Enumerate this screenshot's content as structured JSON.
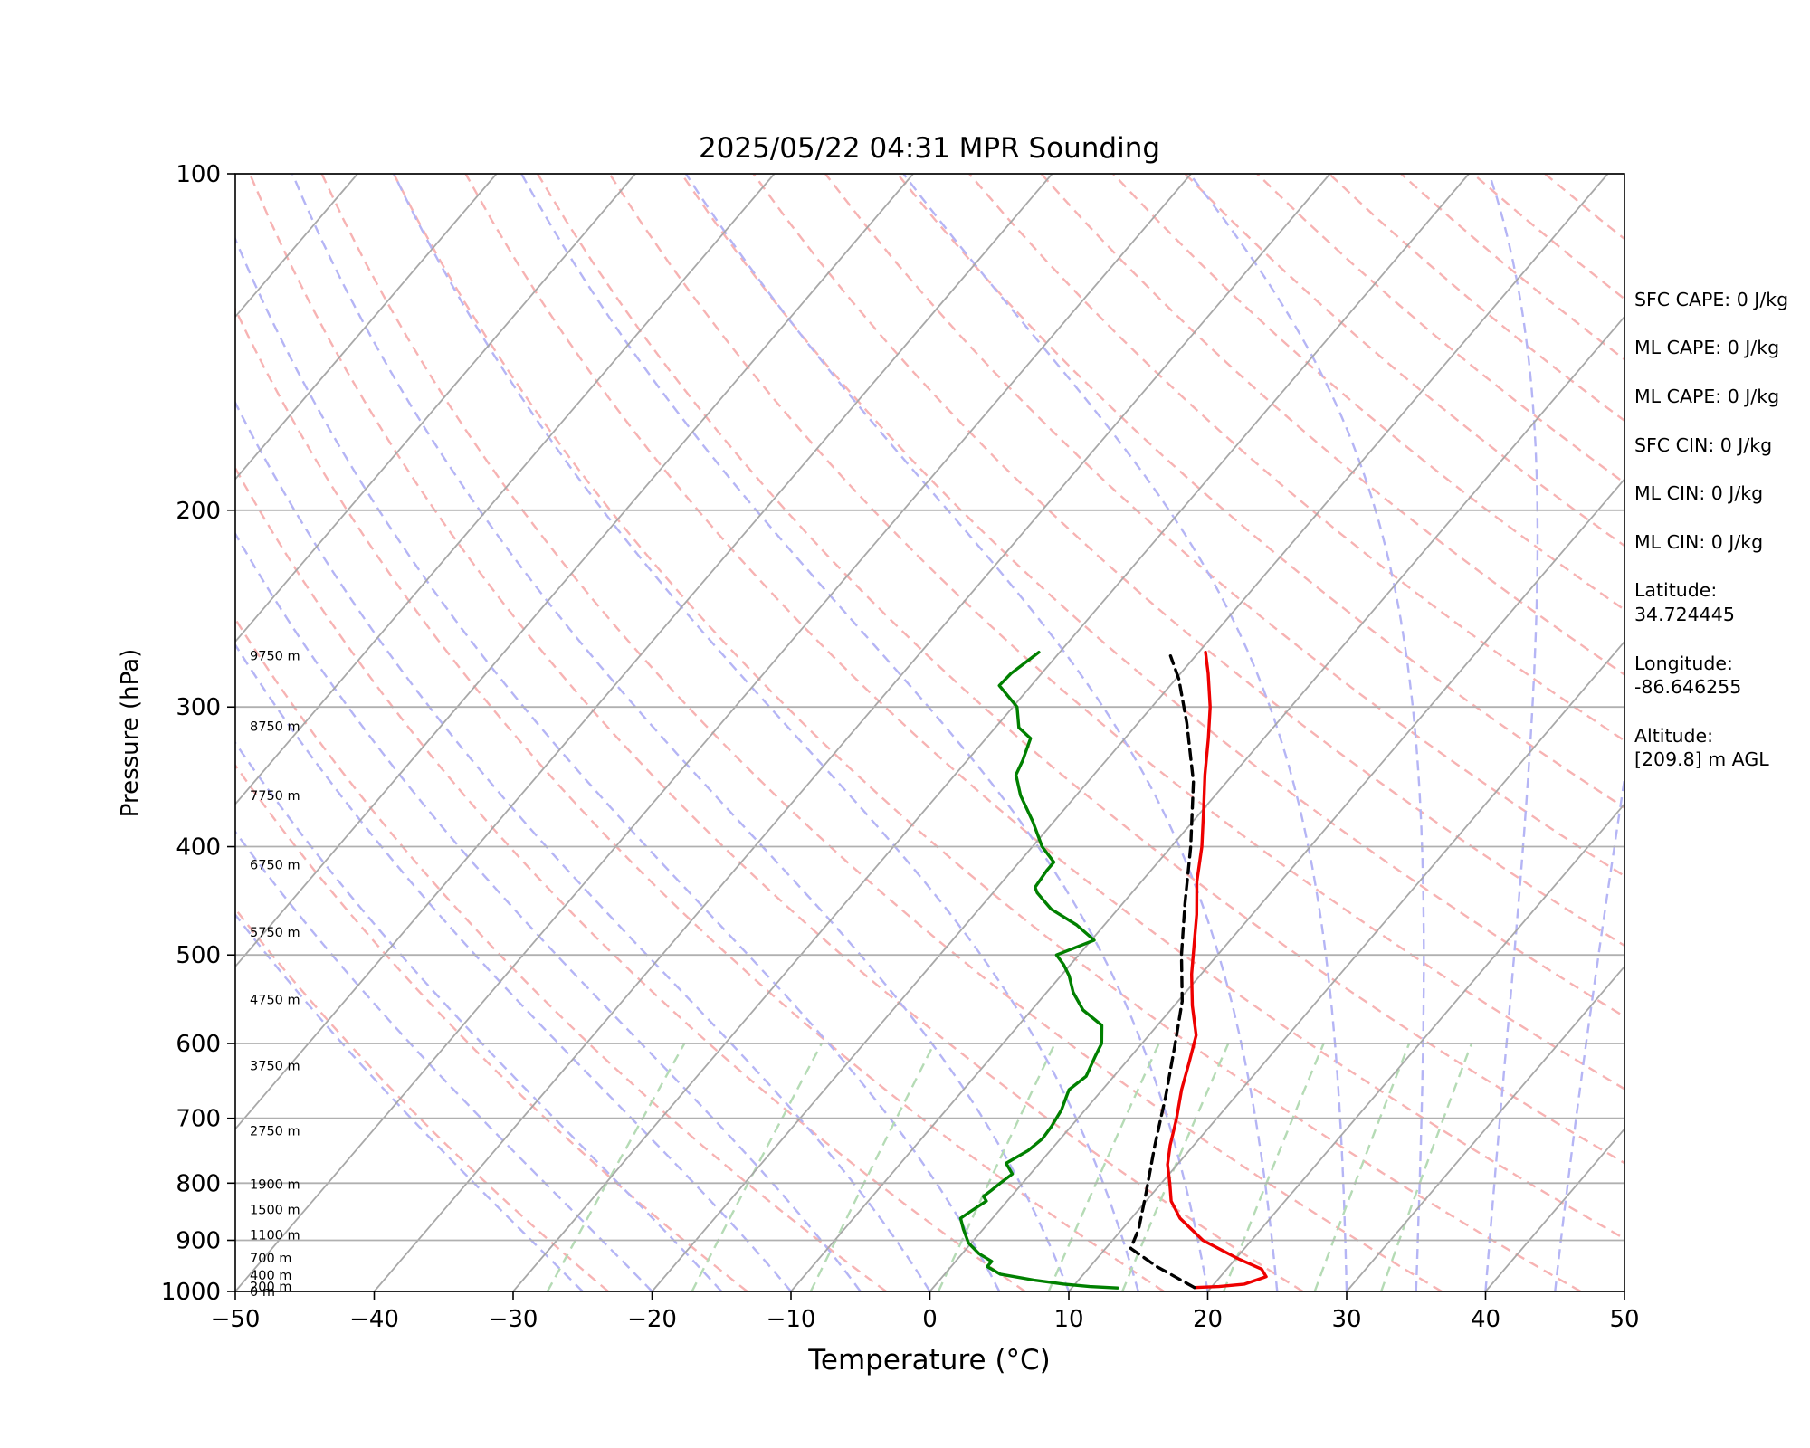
{
  "chart_data": {
    "type": "line",
    "title": "2025/05/22 04:31 MPR Sounding",
    "xlabel": "Temperature (°C)",
    "ylabel": "Pressure (hPa)",
    "xlim": [
      -50,
      50
    ],
    "ylim": [
      1000,
      100
    ],
    "y_scale": "log",
    "skew_per_decade_degC": 68.8,
    "xticks": [
      -50,
      -40,
      -30,
      -20,
      -10,
      0,
      10,
      20,
      30,
      40,
      50
    ],
    "xtick_labels": [
      "−50",
      "−40",
      "−30",
      "−20",
      "−10",
      "0",
      "10",
      "20",
      "30",
      "40",
      "50"
    ],
    "yticks": [
      1000,
      900,
      800,
      700,
      600,
      500,
      400,
      300,
      200,
      100
    ],
    "ytick_labels": [
      "1000",
      "900",
      "800",
      "700",
      "600",
      "500",
      "400",
      "300",
      "200",
      "100"
    ],
    "grid": true,
    "reference_lines": {
      "isotherms": {
        "color": "#a8a8a8",
        "style": "solid"
      },
      "dry_adiabats": {
        "color": "#f7b3b3",
        "style": "dashed"
      },
      "moist_adiabats": {
        "color": "#b5b5f5",
        "style": "dashed"
      },
      "mixing_ratio": {
        "color": "#b5dbb5",
        "style": "dashed"
      }
    },
    "series": [
      {
        "color": "#ee0000",
        "style": "solid",
        "points": [
          [
            18.8,
            992
          ],
          [
            20.5,
            990
          ],
          [
            22.2,
            985
          ],
          [
            23.3,
            970
          ],
          [
            22.5,
            955
          ],
          [
            20.2,
            935
          ],
          [
            16.5,
            900
          ],
          [
            13.5,
            860
          ],
          [
            11.8,
            830
          ],
          [
            10.6,
            800
          ],
          [
            9.3,
            770
          ],
          [
            8.3,
            740
          ],
          [
            7.1,
            700
          ],
          [
            5.7,
            660
          ],
          [
            4.6,
            625
          ],
          [
            3.4,
            590
          ],
          [
            1.3,
            555
          ],
          [
            -0.7,
            520
          ],
          [
            -2.3,
            490
          ],
          [
            -4.0,
            460
          ],
          [
            -6.0,
            430
          ],
          [
            -7.8,
            400
          ],
          [
            -10.0,
            370
          ],
          [
            -12.0,
            345
          ],
          [
            -14.0,
            320
          ],
          [
            -15.8,
            300
          ],
          [
            -18.0,
            280
          ],
          [
            -19.5,
            268
          ]
        ]
      },
      {
        "color": "#000000",
        "style": "dashed",
        "points": [
          [
            18.8,
            992
          ],
          [
            14.8,
            950
          ],
          [
            11.8,
            915
          ],
          [
            11.2,
            880
          ],
          [
            9.6,
            820
          ],
          [
            7.2,
            740
          ],
          [
            5.0,
            670
          ],
          [
            2.4,
            600
          ],
          [
            0.3,
            550
          ],
          [
            -2.6,
            500
          ],
          [
            -5.5,
            450
          ],
          [
            -8.6,
            400
          ],
          [
            -12.4,
            350
          ],
          [
            -16.5,
            310
          ],
          [
            -19.8,
            283
          ],
          [
            -21.8,
            270
          ]
        ]
      },
      {
        "color": "#008000",
        "style": "solid",
        "points": [
          [
            13.3,
            993
          ],
          [
            11.2,
            990
          ],
          [
            9.2,
            985
          ],
          [
            6.8,
            977
          ],
          [
            4.0,
            965
          ],
          [
            2.6,
            950
          ],
          [
            2.6,
            940
          ],
          [
            1.2,
            925
          ],
          [
            -0.2,
            905
          ],
          [
            -1.4,
            880
          ],
          [
            -2.3,
            860
          ],
          [
            -2.0,
            848
          ],
          [
            -1.5,
            830
          ],
          [
            -2.0,
            822
          ],
          [
            -1.8,
            812
          ],
          [
            -1.6,
            800
          ],
          [
            -1.3,
            785
          ],
          [
            -2.4,
            768
          ],
          [
            -1.6,
            748
          ],
          [
            -1.3,
            730
          ],
          [
            -1.4,
            712
          ],
          [
            -1.7,
            688
          ],
          [
            -2.4,
            660
          ],
          [
            -2.0,
            642
          ],
          [
            -2.6,
            615
          ],
          [
            -2.9,
            600
          ],
          [
            -4.0,
            578
          ],
          [
            -6.3,
            560
          ],
          [
            -8.1,
            540
          ],
          [
            -9.4,
            522
          ],
          [
            -10.5,
            510
          ],
          [
            -11.6,
            500
          ],
          [
            -9.8,
            485
          ],
          [
            -12.0,
            470
          ],
          [
            -14.8,
            455
          ],
          [
            -16.8,
            440
          ],
          [
            -17.3,
            435
          ],
          [
            -17.5,
            420
          ],
          [
            -17.5,
            413
          ],
          [
            -19.3,
            400
          ],
          [
            -21.5,
            380
          ],
          [
            -24.0,
            360
          ],
          [
            -25.6,
            345
          ],
          [
            -26.0,
            335
          ],
          [
            -26.8,
            320
          ],
          [
            -28.3,
            313
          ],
          [
            -29.7,
            300
          ],
          [
            -32.3,
            287
          ],
          [
            -32.2,
            280
          ],
          [
            -31.5,
            268
          ]
        ]
      }
    ],
    "height_labels": [
      {
        "text": "0 m",
        "p": 1000
      },
      {
        "text": "200 m",
        "p": 990
      },
      {
        "text": "400 m",
        "p": 967
      },
      {
        "text": "700 m",
        "p": 933
      },
      {
        "text": "1100 m",
        "p": 890
      },
      {
        "text": "1500 m",
        "p": 845
      },
      {
        "text": "1900 m",
        "p": 802
      },
      {
        "text": "2750 m",
        "p": 718
      },
      {
        "text": "3750 m",
        "p": 628
      },
      {
        "text": "4750 m",
        "p": 548
      },
      {
        "text": "5750 m",
        "p": 477
      },
      {
        "text": "6750 m",
        "p": 415
      },
      {
        "text": "7750 m",
        "p": 360
      },
      {
        "text": "8750 m",
        "p": 312
      },
      {
        "text": "9750 m",
        "p": 270
      }
    ],
    "info_lines": [
      "SFC CAPE: 0 J/kg",
      "ML CAPE: 0 J/kg",
      "ML CAPE: 0 J/kg",
      "SFC CIN: 0 J/kg",
      "ML CIN: 0 J/kg",
      "ML CIN: 0 J/kg",
      "Latitude:",
      "34.724445",
      "Longitude:",
      "-86.646255",
      "Altitude:",
      "[209.8] m AGL"
    ]
  }
}
